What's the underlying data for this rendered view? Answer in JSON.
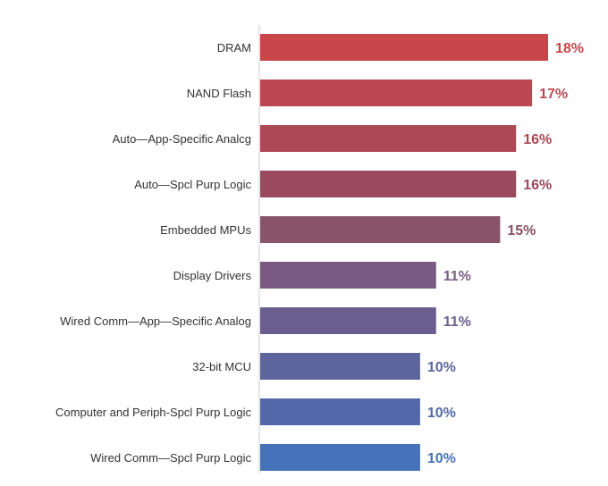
{
  "chart_data": {
    "type": "bar",
    "orientation": "horizontal",
    "categories": [
      "DRAM",
      "NAND Flash",
      "Auto—App-Specific Analcg",
      "Auto—Spcl Purp Logic",
      "Embedded MPUs",
      "Display Drivers",
      "Wired Comm—App—Specific Analog",
      "32-bit MCU",
      "Computer and Periph-Spcl Purp Logic",
      "Wired Comm—Spcl Purp Logic"
    ],
    "values": [
      18,
      17,
      16,
      16,
      15,
      11,
      11,
      10,
      10,
      10
    ],
    "value_labels": [
      "18%",
      "17%",
      "16%",
      "16%",
      "15%",
      "11%",
      "11%",
      "10%",
      "10%",
      "10%"
    ],
    "bar_colors": [
      "#c8454a",
      "#bc4752",
      "#ad4855",
      "#9a4a5e",
      "#885468",
      "#7a5a82",
      "#6a5e8f",
      "#5d659c",
      "#5268a8",
      "#4572b8"
    ],
    "xlim": [
      0,
      18
    ],
    "grid": false,
    "title": "",
    "xlabel": "",
    "ylabel": ""
  }
}
